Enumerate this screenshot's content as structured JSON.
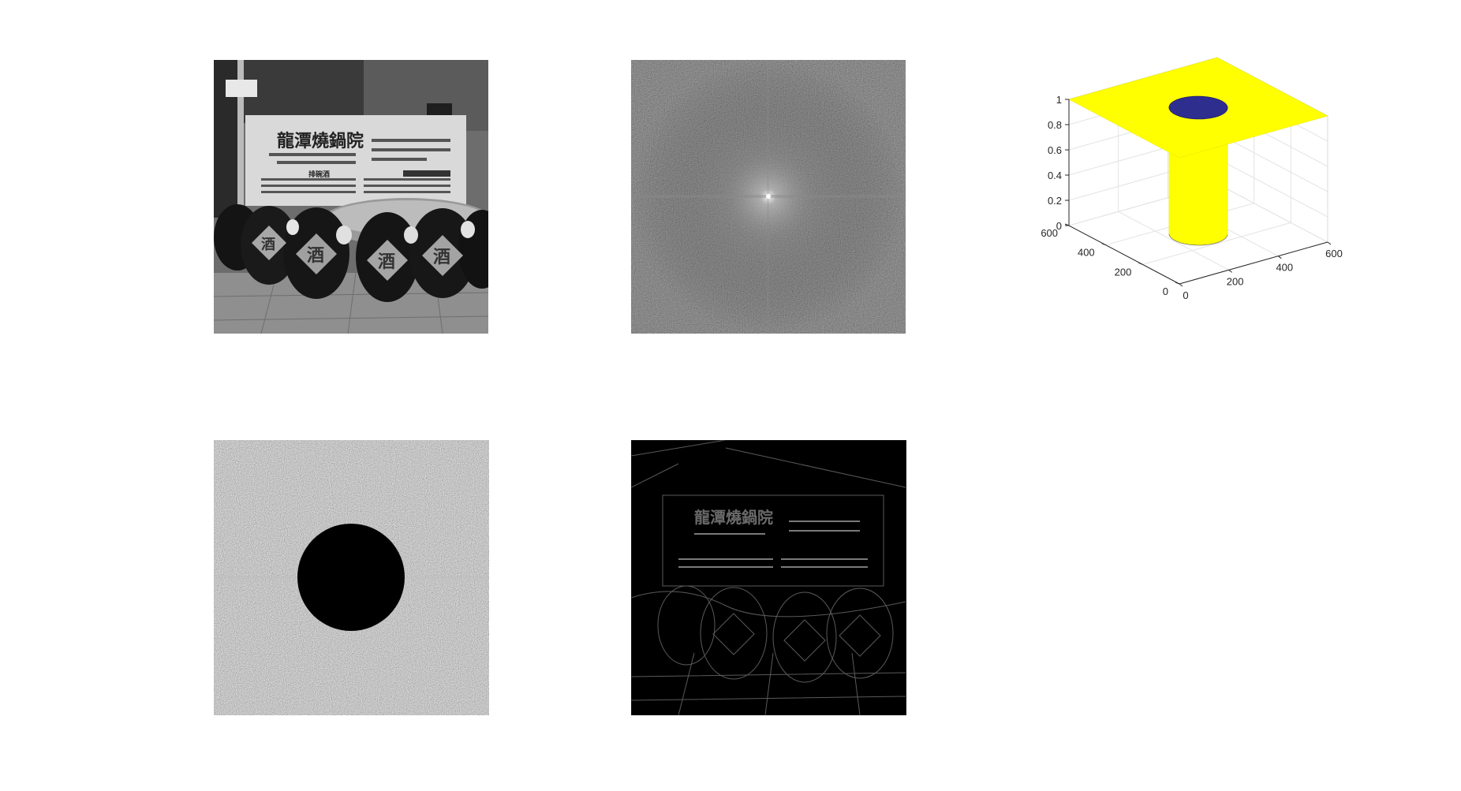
{
  "figure": {
    "panels": [
      {
        "id": "photo",
        "kind": "grayscale-image"
      },
      {
        "id": "spectrum",
        "kind": "grayscale-image"
      },
      {
        "id": "surface",
        "kind": "3d-surface-plot"
      },
      {
        "id": "filtered-spectrum",
        "kind": "grayscale-image"
      },
      {
        "id": "edges",
        "kind": "grayscale-image"
      }
    ]
  },
  "photo": {
    "banner_title": "龍潭燒鍋院",
    "banner_small": "排碗酒",
    "jar_labels": [
      "酒",
      "酒",
      "酒",
      "酒"
    ]
  },
  "edges": {
    "banner_title": "龍潭燒鍋院"
  },
  "chart_data": {
    "type": "surface",
    "title": "",
    "xlabel": "",
    "ylabel": "",
    "zlabel": "",
    "x_ticks": [
      "0",
      "200",
      "400",
      "600"
    ],
    "y_ticks": [
      "0",
      "200",
      "400",
      "600"
    ],
    "z_ticks": [
      "0",
      "0.2",
      "0.4",
      "0.6",
      "0.8",
      "1"
    ],
    "xlim": [
      0,
      600
    ],
    "ylim": [
      0,
      600
    ],
    "zlim": [
      0,
      1
    ],
    "grid": true,
    "description_series": [
      {
        "region": "outside-radius",
        "z": 1,
        "color": "#ffff00"
      },
      {
        "region": "inside-radius",
        "z": 0,
        "color": "#2e2e8f"
      }
    ]
  },
  "colors": {
    "surface_high": "#ffff00",
    "surface_low": "#2e2e8f",
    "axis": "#262626",
    "grid": "#e3e3e3"
  }
}
